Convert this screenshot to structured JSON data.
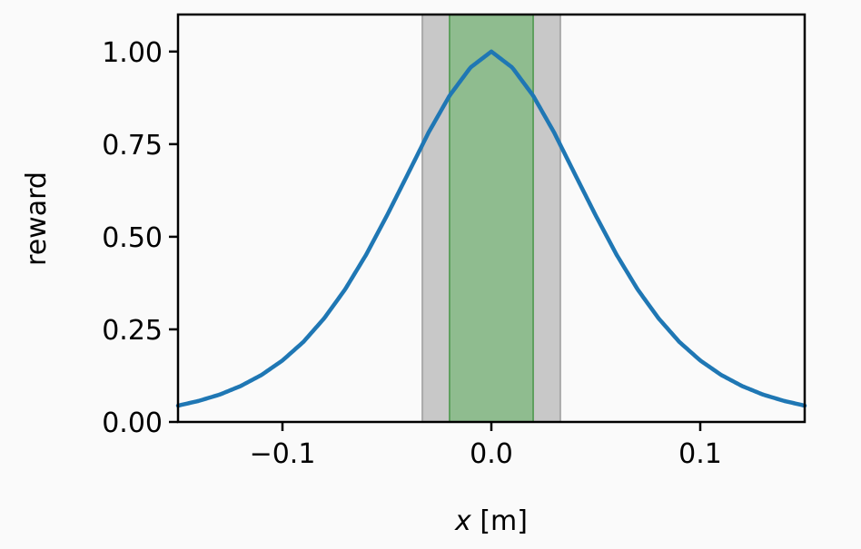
{
  "chart_data": {
    "type": "line",
    "title": "",
    "xlabel_var": "x",
    "xlabel_unit": " [m]",
    "ylabel": "reward",
    "xlim": [
      -0.15,
      0.15
    ],
    "ylim": [
      0,
      1.1
    ],
    "x_ticks": [
      -0.1,
      0.0,
      0.1
    ],
    "x_tick_labels": [
      "−0.1",
      "0.0",
      "0.1"
    ],
    "y_ticks": [
      0,
      0.25,
      0.5,
      0.75,
      1.0
    ],
    "y_tick_labels": [
      "0.00",
      "0.25",
      "0.50",
      "0.75",
      "1.00"
    ],
    "grid": false,
    "bands": [
      {
        "x0": -0.033,
        "x1": 0.033,
        "fill": "#c8c8c8",
        "edge": "#a9a9a9"
      },
      {
        "x0": -0.02,
        "x1": 0.02,
        "fill": "#8fbc8f",
        "edge": "#5fa05f"
      }
    ],
    "series": [
      {
        "color": "#1f77b4",
        "x": [
          -0.15,
          -0.14,
          -0.13,
          -0.12,
          -0.11,
          -0.1,
          -0.09,
          -0.08,
          -0.07,
          -0.06,
          -0.05,
          -0.04,
          -0.03,
          -0.02,
          -0.01,
          0.0,
          0.01,
          0.02,
          0.03,
          0.04,
          0.05,
          0.06,
          0.07,
          0.08,
          0.09,
          0.1,
          0.11,
          0.12,
          0.13,
          0.14,
          0.15
        ],
        "y": [
          0.044,
          0.057,
          0.074,
          0.097,
          0.127,
          0.166,
          0.216,
          0.28,
          0.358,
          0.451,
          0.557,
          0.669,
          0.782,
          0.881,
          0.957,
          1.0,
          0.957,
          0.881,
          0.782,
          0.669,
          0.557,
          0.451,
          0.358,
          0.28,
          0.216,
          0.166,
          0.127,
          0.097,
          0.074,
          0.057,
          0.044
        ]
      }
    ]
  }
}
